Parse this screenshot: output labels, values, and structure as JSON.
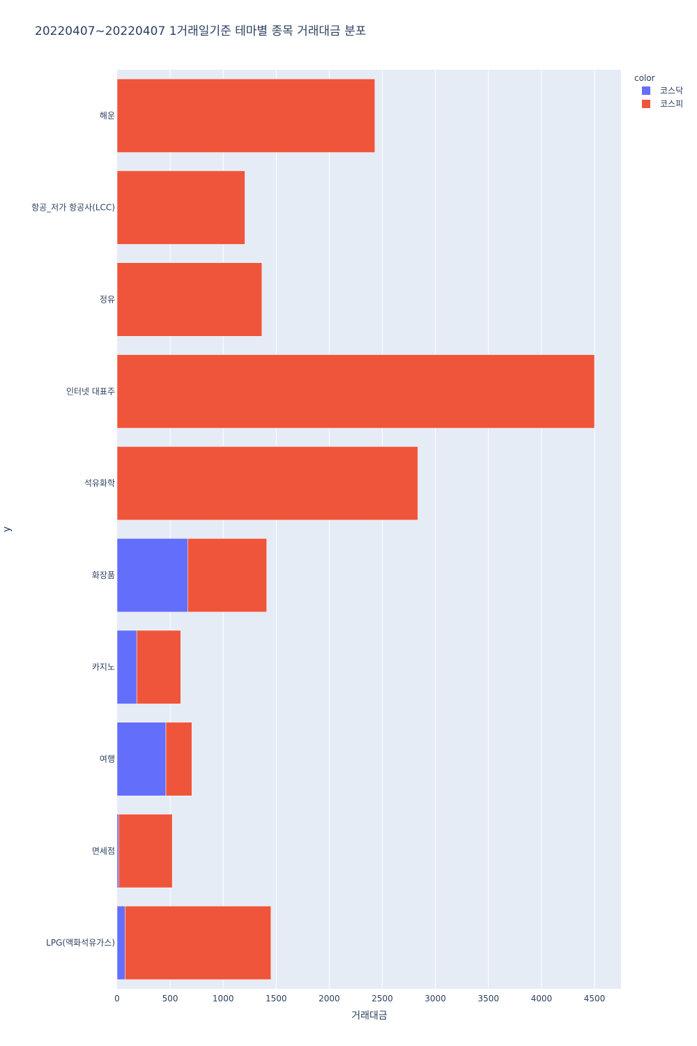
{
  "colors": {
    "plot_bg": "#e5ecf6",
    "grid": "#ffffff",
    "text": "#2a3f5f"
  },
  "chart_data": {
    "type": "bar",
    "orientation": "horizontal",
    "barmode": "stack",
    "title": "20220407~20220407 1거래일기준 테마별 종목 거래대금 분포",
    "xlabel": "거래대금",
    "ylabel": "y",
    "xlim": [
      0,
      4750
    ],
    "xticks": [
      0,
      500,
      1000,
      1500,
      2000,
      2500,
      3000,
      3500,
      4000,
      4500
    ],
    "grid": true,
    "legend_title": "color",
    "legend_position": "top-right",
    "categories": [
      "해운",
      "항공_저가 항공사(LCC)",
      "정유",
      "인터넷 대표주",
      "석유화학",
      "화장품",
      "카지노",
      "여행",
      "면세점",
      "LPG(액화석유가스)"
    ],
    "series": [
      {
        "name": "코스닥",
        "color": "#636efa",
        "values": [
          0,
          0,
          0,
          0,
          0,
          665,
          185,
          460,
          15,
          75
        ]
      },
      {
        "name": "코스피",
        "color": "#ef553b",
        "values": [
          2430,
          1205,
          1365,
          4500,
          2835,
          745,
          415,
          245,
          505,
          1375
        ]
      }
    ]
  }
}
